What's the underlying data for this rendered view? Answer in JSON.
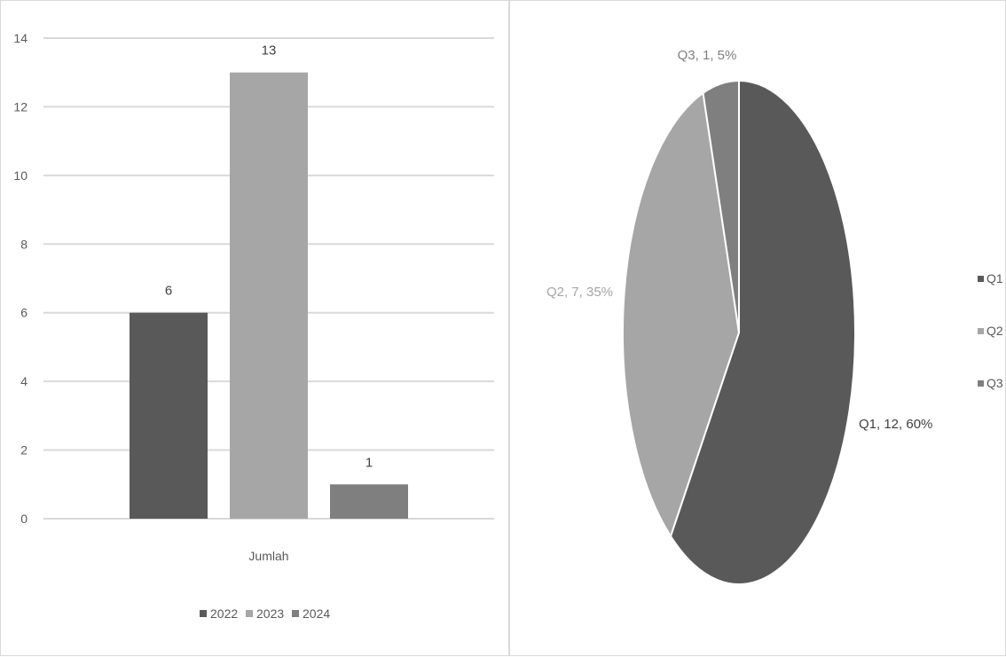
{
  "chart_data": [
    {
      "type": "bar",
      "categories": [
        "Jumlah"
      ],
      "series": [
        {
          "name": "2022",
          "values": [
            6
          ],
          "color": "#595959"
        },
        {
          "name": "2023",
          "values": [
            13
          ],
          "color": "#a6a6a6"
        },
        {
          "name": "2024",
          "values": [
            1
          ],
          "color": "#7f7f7f"
        }
      ],
      "ylim": [
        0,
        14
      ],
      "yticks": [
        0,
        2,
        4,
        6,
        8,
        10,
        12,
        14
      ],
      "xlabel": "Jumlah",
      "grid": true,
      "legend": "bottom"
    },
    {
      "type": "pie",
      "slices": [
        {
          "name": "Q1",
          "value": 12,
          "percent": "60%",
          "label": "Q1, 12, 60%",
          "color": "#595959"
        },
        {
          "name": "Q2",
          "value": 7,
          "percent": "35%",
          "label": "Q2, 7, 35%",
          "color": "#a6a6a6"
        },
        {
          "name": "Q3",
          "value": 1,
          "percent": "5%",
          "label": "Q3, 1, 5%",
          "color": "#7f7f7f"
        }
      ],
      "legend": "right"
    }
  ]
}
